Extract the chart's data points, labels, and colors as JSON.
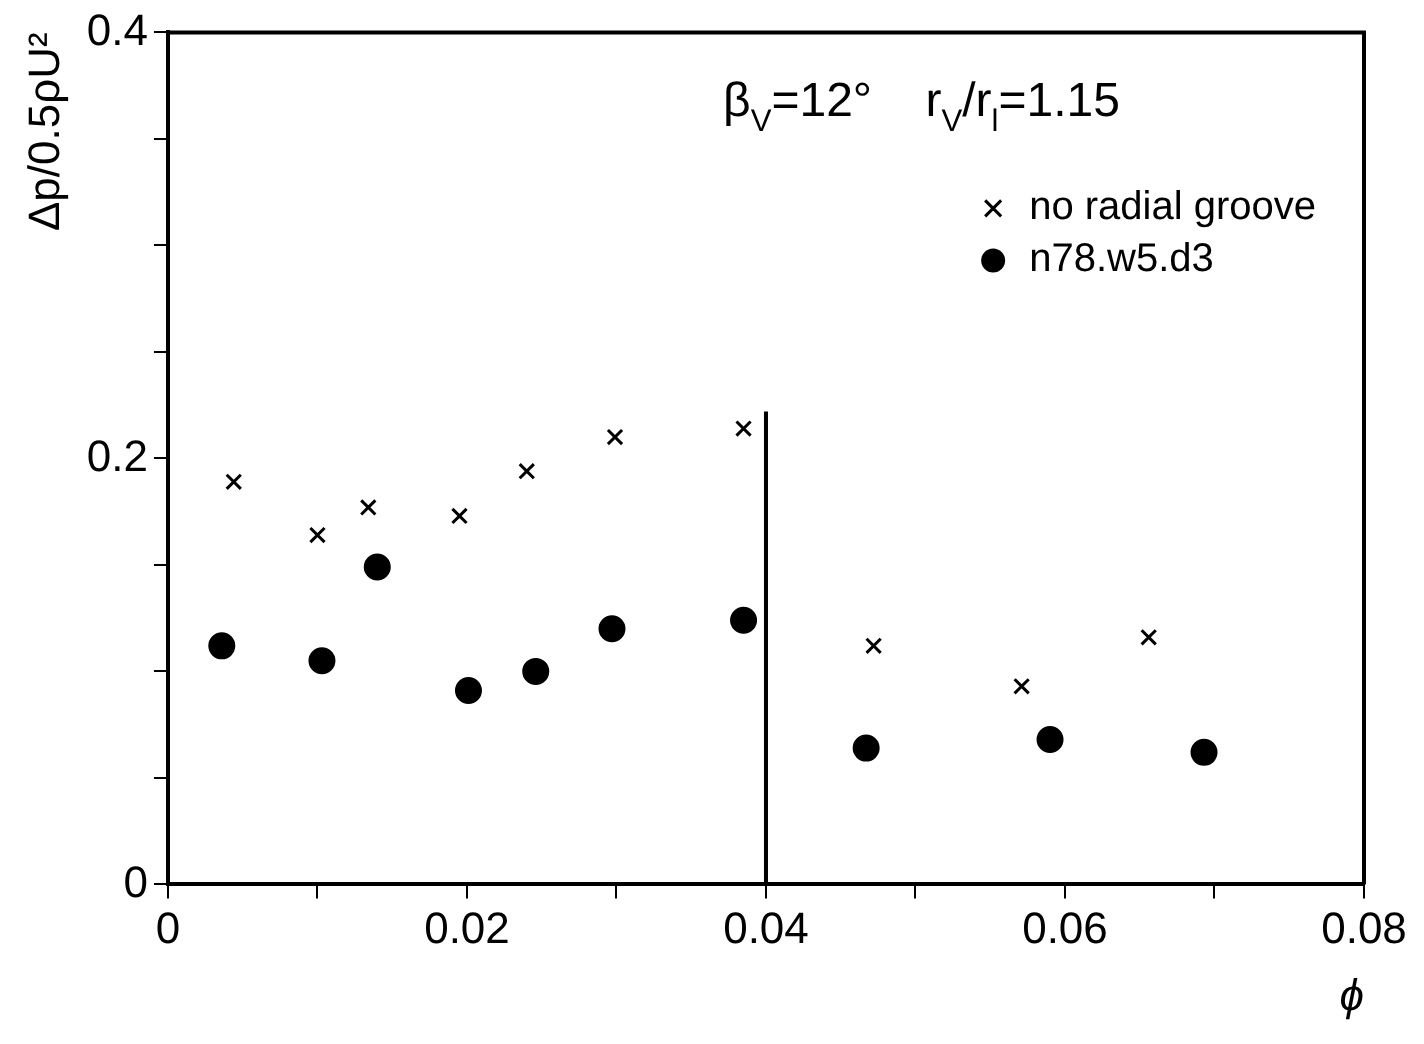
{
  "chart_data": {
    "type": "scatter",
    "xlabel": "ϕ",
    "ylabel": "Δp/0.5ρU²",
    "annotations": [
      "β$_{V}$=12°    r$_{V}$/r$_{l}$=1.15"
    ],
    "xlim": [
      0,
      0.08
    ],
    "ylim": [
      0,
      0.4
    ],
    "xticks": [
      0,
      {
        "value": 0.01,
        "label": null
      },
      0.02,
      {
        "value": 0.03,
        "label": null
      },
      0.04,
      {
        "value": 0.05,
        "label": null
      },
      0.06,
      {
        "value": 0.07,
        "label": null
      },
      0.08
    ],
    "yticks": [
      0,
      {
        "value": 0.05,
        "label": null
      },
      {
        "value": 0.1,
        "label": null
      },
      {
        "value": 0.15,
        "label": null
      },
      0.2,
      {
        "value": 0.25,
        "label": null
      },
      {
        "value": 0.3,
        "label": null
      },
      {
        "value": 0.35,
        "label": null
      },
      0.4
    ],
    "legend": "top right",
    "grid": false,
    "series": [
      {
        "name": "no radial groove",
        "color": "#000000",
        "marker": "cross",
        "x": [
          0.0044,
          0.01,
          0.0134,
          0.0195,
          0.024,
          0.0299,
          0.0385,
          0.0472,
          0.0571,
          0.0656
        ],
        "values": [
          0.189,
          0.164,
          0.177,
          0.173,
          0.194,
          0.21,
          0.214,
          0.112,
          0.093,
          0.116
        ]
      },
      {
        "name": "n78.w5.d3",
        "color": "#000000",
        "marker": "circle",
        "x": [
          0.0036,
          0.0103,
          0.014,
          0.0201,
          0.0246,
          0.0297,
          0.0385,
          0.0467,
          0.059,
          0.0693
        ],
        "values": [
          0.112,
          0.105,
          0.149,
          0.091,
          0.1,
          0.12,
          0.124,
          0.064,
          0.068,
          0.062
        ]
      },
      {
        "type": "line",
        "color": "#000000",
        "marker": "none",
        "x": [
          0.04,
          0.04
        ],
        "values": [
          0,
          0.222
        ]
      }
    ]
  }
}
